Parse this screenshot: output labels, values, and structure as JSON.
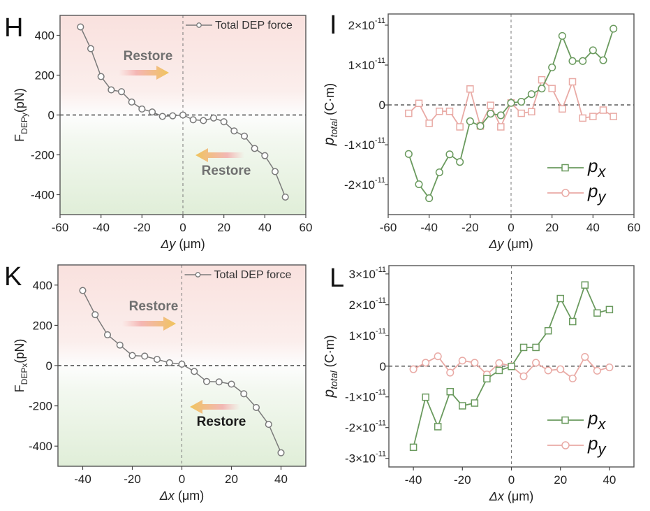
{
  "chart_data": [
    {
      "id": "H",
      "panel_letter": "H",
      "type": "line",
      "title": "",
      "xlabel": "Δy (μm)",
      "ylabel": "F_DEPy(pN)",
      "ylabel_main": "F",
      "ylabel_sub": "DEPy",
      "ylabel_unit": "(pN)",
      "xlabel_var": "Δy",
      "xlabel_unit": " (μm)",
      "xlim": [
        -60,
        60
      ],
      "ylim": [
        -500,
        500
      ],
      "xticks": [
        -60,
        -40,
        -20,
        0,
        20,
        40,
        60
      ],
      "yticks": [
        -400,
        -200,
        0,
        200,
        400
      ],
      "ytick_labels": [
        "-400",
        "-200",
        "0",
        "200",
        "400"
      ],
      "background": "pink-top-green-bottom-gradient",
      "legend": {
        "label": "Total DEP force",
        "placement": "top-right"
      },
      "annotations": [
        {
          "text": "Restore",
          "arrow_direction": "right",
          "region": "upper-left",
          "color": "#707070"
        },
        {
          "text": "Restore",
          "arrow_direction": "left",
          "region": "lower-right",
          "color": "#707070"
        }
      ],
      "series": [
        {
          "name": "Total DEP force",
          "marker": "circle",
          "color": "#7a7a7a",
          "x": [
            -50,
            -45,
            -40,
            -35,
            -30,
            -25,
            -20,
            -15,
            -10,
            -5,
            0,
            5,
            10,
            15,
            20,
            25,
            30,
            35,
            40,
            45,
            50
          ],
          "y": [
            442,
            333,
            193,
            126,
            117,
            65,
            30,
            15,
            -7,
            -4,
            0,
            -24,
            -28,
            -15,
            -34,
            -80,
            -106,
            -168,
            -204,
            -284,
            -412
          ]
        }
      ]
    },
    {
      "id": "I",
      "panel_letter": "I",
      "type": "line",
      "title": "",
      "xlabel": "Δy (μm)",
      "ylabel": "p_total (C·m)",
      "xlabel_var": "Δy",
      "xlabel_unit": " (μm)",
      "ylabel_main": "p",
      "ylabel_sub": "total",
      "ylabel_unit": " (C·m)",
      "xlim": [
        -60,
        60
      ],
      "ylim": [
        -2.75e-11,
        2.28e-11
      ],
      "xticks": [
        -60,
        -40,
        -20,
        0,
        20,
        40,
        60
      ],
      "yticks": [
        -2e-11,
        -1e-11,
        0,
        1e-11,
        2e-11
      ],
      "ytick_labels": [
        [
          "-2×10",
          "-11"
        ],
        [
          "-1×10",
          "-11"
        ],
        [
          "0",
          ""
        ],
        [
          "1×10",
          "-11"
        ],
        [
          "2×10",
          "-11"
        ]
      ],
      "legend": {
        "placement": "bottom-right",
        "entries": [
          {
            "label": "p",
            "sub": "x",
            "marker": "square",
            "color": "#6a9a5e"
          },
          {
            "label": "p",
            "sub": "y",
            "marker": "circle",
            "color": "#e9aaa5"
          }
        ]
      },
      "series": [
        {
          "name": "p_y",
          "marker": "square",
          "color": "#e9aaa5",
          "x": [
            -50,
            -45,
            -40,
            -35,
            -30,
            -25,
            -20,
            -15,
            -10,
            -5,
            0,
            5,
            10,
            15,
            20,
            25,
            30,
            35,
            40,
            45,
            50
          ],
          "y": [
            -2.1e-12,
            4e-13,
            -4.6e-12,
            -1.6e-12,
            -1.6e-12,
            -5.5e-12,
            4e-12,
            -5.3e-12,
            -1e-13,
            -5.5e-12,
            5e-13,
            -2.1e-12,
            -1.7e-12,
            6.3e-12,
            4.1e-12,
            -1e-12,
            5.8e-12,
            -3.3e-12,
            -2.9e-12,
            -1.3e-12,
            -2.9e-12
          ]
        },
        {
          "name": "p_x",
          "marker": "circle",
          "color": "#6a9a5e",
          "x": [
            -50,
            -45,
            -40,
            -35,
            -30,
            -25,
            -20,
            -15,
            -10,
            -5,
            0,
            5,
            10,
            15,
            20,
            25,
            30,
            35,
            40,
            45,
            50
          ],
          "y": [
            -1.23e-11,
            -1.99e-11,
            -2.34e-11,
            -1.69e-11,
            -1.24e-11,
            -1.43e-11,
            -4.1e-12,
            -5.3e-12,
            -2.2e-12,
            -2.6e-12,
            5e-13,
            8e-13,
            2.7e-12,
            4.1e-12,
            9.4e-12,
            1.73e-11,
            1.1e-11,
            1.1e-11,
            1.37e-11,
            1.12e-11,
            1.91e-11
          ]
        }
      ]
    },
    {
      "id": "K",
      "panel_letter": "K",
      "type": "line",
      "title": "",
      "xlabel": "Δx (μm)",
      "ylabel": "F_DEPx(pN)",
      "ylabel_main": "F",
      "ylabel_sub": "DEPx",
      "ylabel_unit": "(pN)",
      "xlabel_var": "Δx",
      "xlabel_unit": " (μm)",
      "xlim": [
        -50,
        50
      ],
      "ylim": [
        -500,
        500
      ],
      "xticks": [
        -40,
        -20,
        0,
        20,
        40
      ],
      "yticks": [
        -400,
        -200,
        0,
        200,
        400
      ],
      "ytick_labels": [
        "-400",
        "-200",
        "0",
        "200",
        "400"
      ],
      "background": "pink-top-green-bottom-gradient",
      "legend": {
        "label": "Total DEP force",
        "placement": "top-right"
      },
      "annotations": [
        {
          "text": "Restore",
          "arrow_direction": "right",
          "region": "upper-left",
          "color": "#707070"
        },
        {
          "text": "Restore",
          "arrow_direction": "left",
          "region": "lower-right",
          "color": "#1a1a1a"
        }
      ],
      "series": [
        {
          "name": "Total DEP force",
          "marker": "circle",
          "color": "#7a7a7a",
          "x": [
            -40,
            -35,
            -30,
            -25,
            -20,
            -15,
            -10,
            -5,
            0,
            5,
            10,
            15,
            20,
            25,
            30,
            35,
            40
          ],
          "y": [
            373,
            253,
            153,
            102,
            50,
            47,
            31,
            14,
            7,
            -29,
            -79,
            -81,
            -92,
            -140,
            -208,
            -292,
            -433
          ]
        }
      ]
    },
    {
      "id": "L",
      "panel_letter": "L",
      "type": "line",
      "title": "",
      "xlabel": "Δx (μm)",
      "ylabel": "p_total (C·m)",
      "xlabel_var": "Δx",
      "xlabel_unit": " (μm)",
      "ylabel_main": "p",
      "ylabel_sub": "total",
      "ylabel_unit": " (C·m)",
      "xlim": [
        -50,
        50
      ],
      "ylim": [
        -3.28e-11,
        3.27e-11
      ],
      "xticks": [
        -40,
        -20,
        0,
        20,
        40
      ],
      "yticks": [
        -3e-11,
        -2e-11,
        -1e-11,
        0,
        1e-11,
        2e-11,
        3e-11
      ],
      "ytick_labels": [
        [
          "-3×10",
          "-11"
        ],
        [
          "-2×10",
          "-11"
        ],
        [
          "-1×10",
          "-11"
        ],
        [
          "0",
          ""
        ],
        [
          "1×10",
          "-11"
        ],
        [
          "2×10",
          "-11"
        ],
        [
          "3×10",
          "-11"
        ]
      ],
      "legend": {
        "placement": "bottom-right",
        "entries": [
          {
            "label": "p",
            "sub": "x",
            "marker": "square",
            "color": "#6a9a5e"
          },
          {
            "label": "p",
            "sub": "y",
            "marker": "circle",
            "color": "#e9aaa5"
          }
        ]
      },
      "series": [
        {
          "name": "p_y",
          "marker": "circle",
          "color": "#e9aaa5",
          "x": [
            -40,
            -35,
            -30,
            -25,
            -20,
            -15,
            -10,
            -5,
            0,
            5,
            10,
            15,
            20,
            25,
            30,
            35,
            40
          ],
          "y": [
            -1e-12,
            1.1e-12,
            3.2e-12,
            -2.1e-12,
            1.8e-12,
            1.1e-12,
            -2.7e-12,
            1e-12,
            0.0,
            -3.3e-12,
            1.1e-12,
            -1.4e-12,
            -1e-12,
            -4e-12,
            3e-12,
            -1.5e-12,
            -4e-13
          ]
        },
        {
          "name": "p_x",
          "marker": "square",
          "color": "#6a9a5e",
          "x": [
            -40,
            -35,
            -30,
            -25,
            -20,
            -15,
            -10,
            -5,
            0,
            5,
            10,
            15,
            20,
            25,
            30,
            35,
            40
          ],
          "y": [
            -2.64e-11,
            -1.01e-11,
            -1.97e-11,
            -8.3e-12,
            -1.29e-11,
            -1.2e-11,
            -4.1e-12,
            -1.4e-12,
            -1e-13,
            6.1e-12,
            6.1e-12,
            1.15e-11,
            2.2e-11,
            1.45e-11,
            2.64e-11,
            1.73e-11,
            1.84e-11
          ]
        }
      ]
    }
  ]
}
